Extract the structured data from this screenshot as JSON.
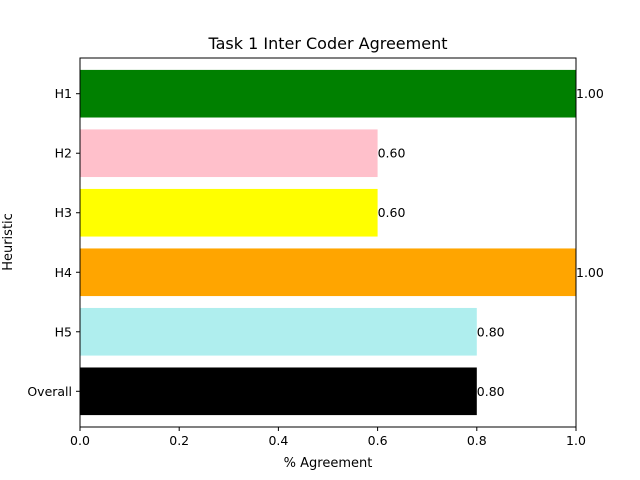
{
  "chart_data": {
    "type": "bar",
    "orientation": "horizontal",
    "title": "Task 1 Inter Coder Agreement",
    "xlabel": "% Agreement",
    "ylabel": "Heuristic",
    "categories": [
      "H1",
      "H2",
      "H3",
      "H4",
      "H5",
      "Overall"
    ],
    "values": [
      1.0,
      0.6,
      0.6,
      1.0,
      0.8,
      0.8
    ],
    "value_labels": [
      "1.00",
      "0.60",
      "0.60",
      "1.00",
      "0.80",
      "0.80"
    ],
    "bar_colors": [
      "#008000",
      "#ffc0cb",
      "#ffff00",
      "#ffa500",
      "#afeeee",
      "#000000"
    ],
    "xlim": [
      0,
      1.0
    ],
    "xticks": [
      0.0,
      0.2,
      0.4,
      0.6,
      0.8,
      1.0
    ],
    "xtick_labels": [
      "0.0",
      "0.2",
      "0.4",
      "0.6",
      "0.8",
      "1.0"
    ],
    "grid": false,
    "legend": "none"
  }
}
